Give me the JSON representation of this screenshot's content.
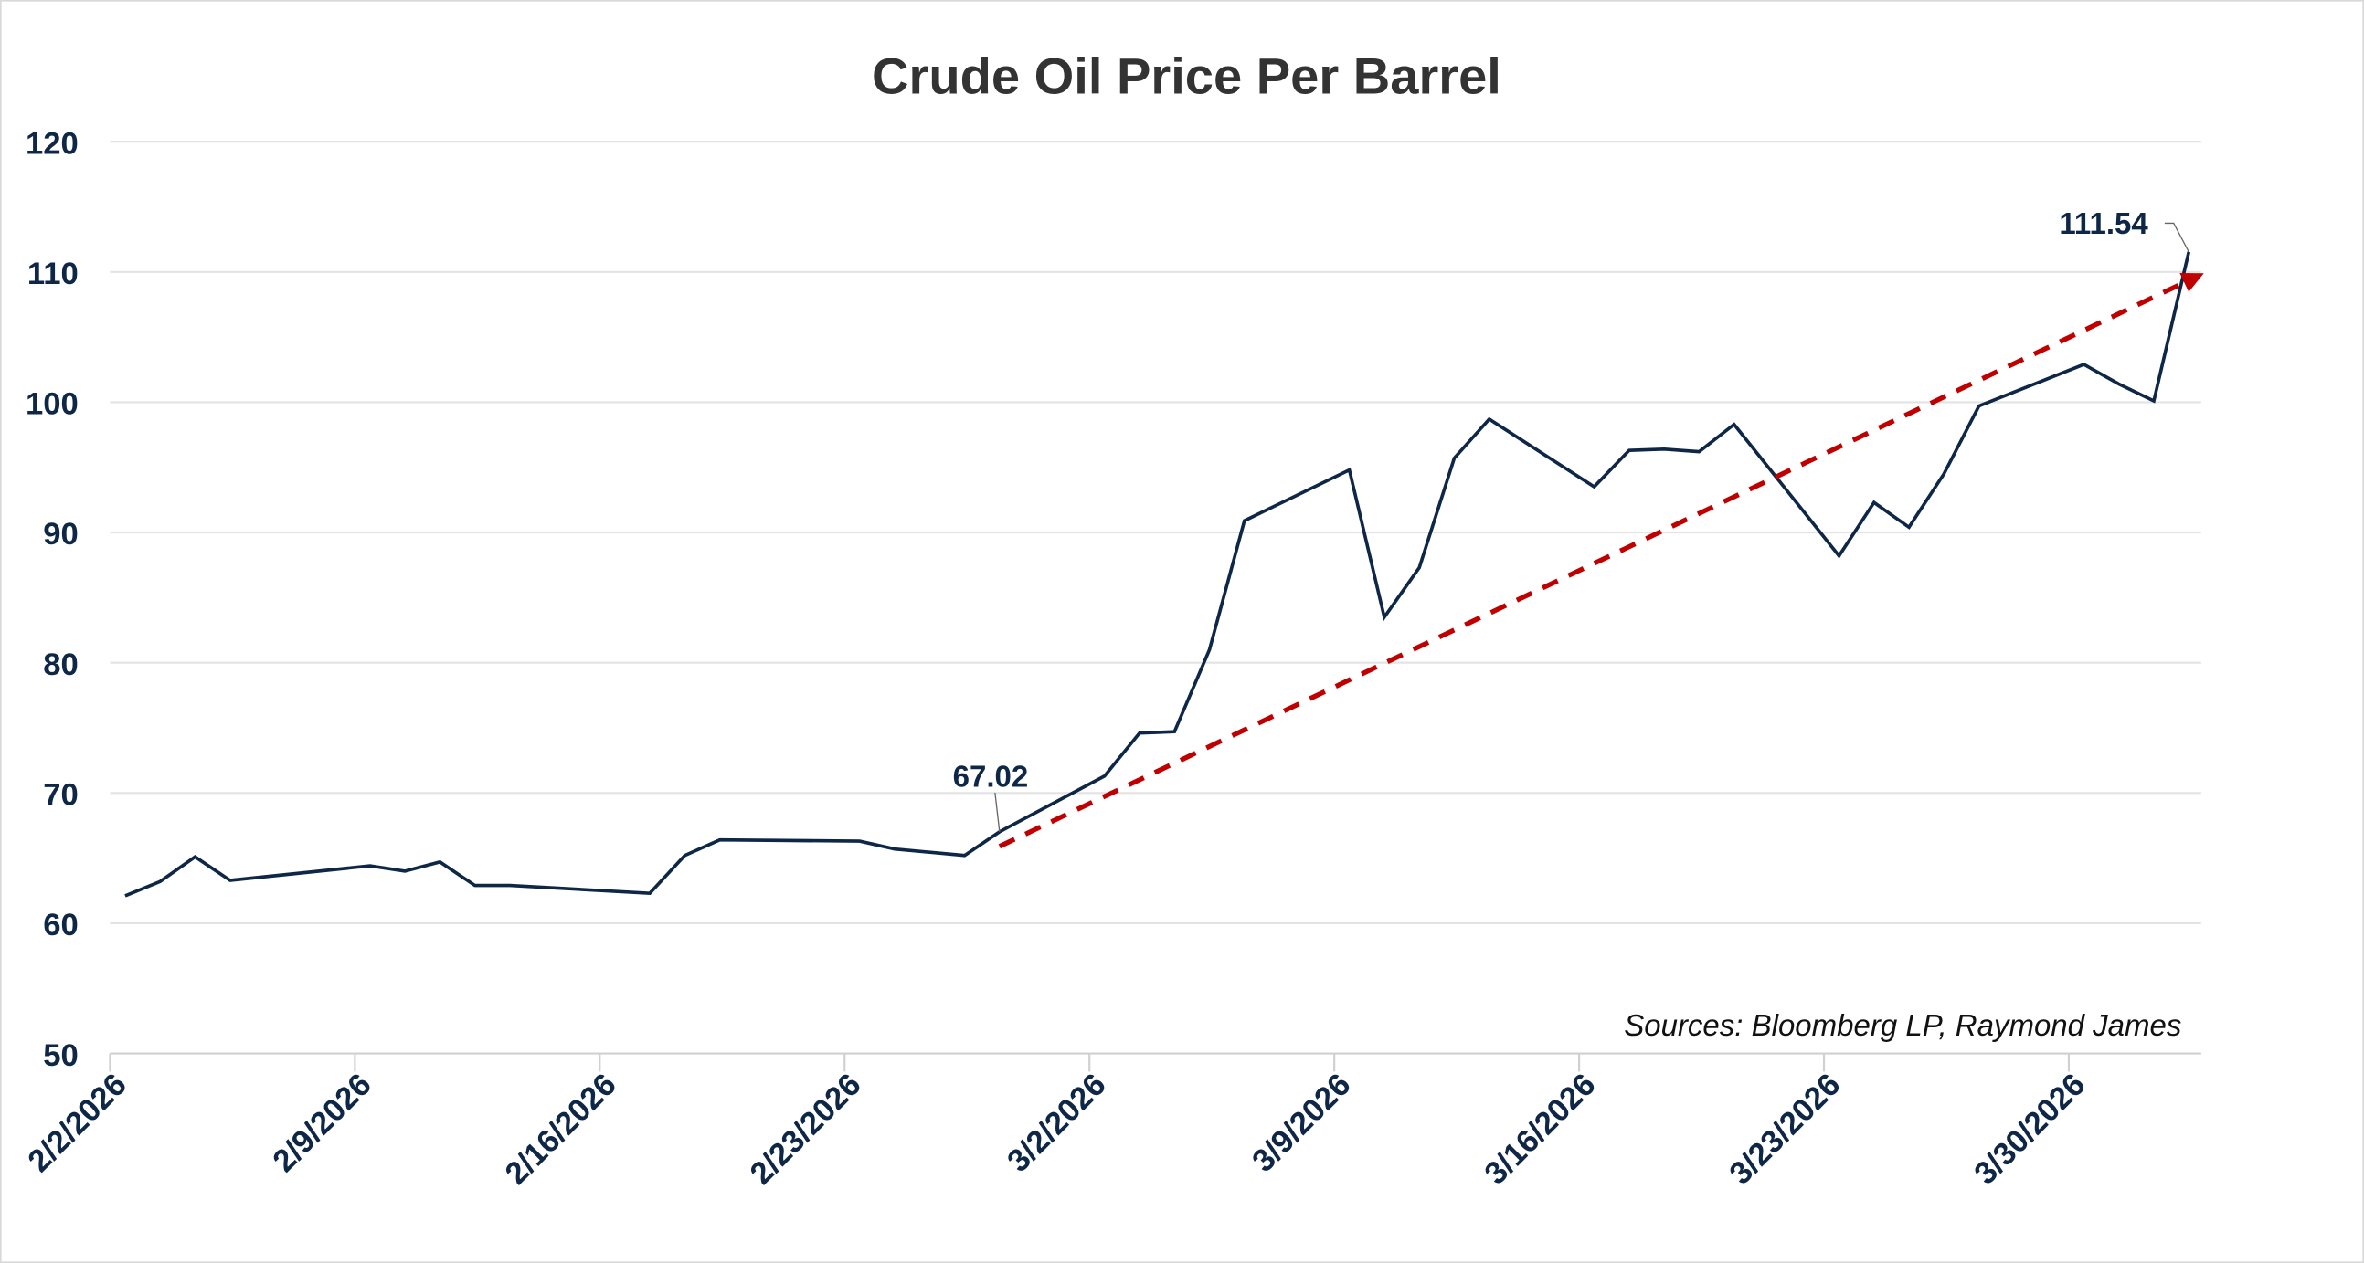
{
  "chart_data": {
    "type": "line",
    "title": "Crude Oil Price Per Barrel",
    "xlabel": "",
    "ylabel": "",
    "ylim": [
      50,
      120
    ],
    "yticks": [
      50,
      60,
      70,
      80,
      90,
      100,
      110,
      120
    ],
    "xticks": [
      "2/2/2026",
      "2/9/2026",
      "2/16/2026",
      "2/23/2026",
      "3/2/2026",
      "3/9/2026",
      "3/16/2026",
      "3/23/2026",
      "3/30/2026"
    ],
    "xlim": [
      "2026-02-02",
      "2026-04-02"
    ],
    "grid": "horizontal",
    "colors": {
      "line": "#0f2747",
      "trend": "#c00000",
      "grid": "#e3e3e3"
    },
    "series": [
      {
        "x": [
          "2026-02-02",
          "2026-02-03",
          "2026-02-04",
          "2026-02-05",
          "2026-02-09",
          "2026-02-10",
          "2026-02-11",
          "2026-02-12",
          "2026-02-13",
          "2026-02-17",
          "2026-02-18",
          "2026-02-19",
          "2026-02-23",
          "2026-02-24",
          "2026-02-26",
          "2026-02-27",
          "2026-03-02",
          "2026-03-03",
          "2026-03-04",
          "2026-03-05",
          "2026-03-06",
          "2026-03-09",
          "2026-03-10",
          "2026-03-11",
          "2026-03-12",
          "2026-03-13",
          "2026-03-16",
          "2026-03-17",
          "2026-03-18",
          "2026-03-19",
          "2026-03-20",
          "2026-03-23",
          "2026-03-24",
          "2026-03-25",
          "2026-03-26",
          "2026-03-27",
          "2026-03-30",
          "2026-03-31",
          "2026-04-01",
          "2026-04-02"
        ],
        "values": [
          62.1,
          63.2,
          65.1,
          63.3,
          64.4,
          64.0,
          64.7,
          62.9,
          62.9,
          62.3,
          65.2,
          66.4,
          66.3,
          65.7,
          65.2,
          67.02,
          71.3,
          74.6,
          74.7,
          81.0,
          90.9,
          94.8,
          83.5,
          87.3,
          95.7,
          98.7,
          93.5,
          96.3,
          96.4,
          96.2,
          98.3,
          88.2,
          92.3,
          90.4,
          94.5,
          99.7,
          102.9,
          101.4,
          100.1,
          111.54
        ]
      }
    ],
    "trendline": {
      "start": {
        "x": "2026-02-27",
        "y": 65.9
      },
      "end": {
        "x": "2026-04-02",
        "y": 109.9
      },
      "style": "dashed-arrow"
    },
    "annotations": [
      {
        "x": "2026-02-27",
        "y": 67.02,
        "text": "67.02"
      },
      {
        "x": "2026-04-02",
        "y": 111.54,
        "text": "111.54"
      }
    ],
    "source": "Sources: Bloomberg LP, Raymond James"
  }
}
